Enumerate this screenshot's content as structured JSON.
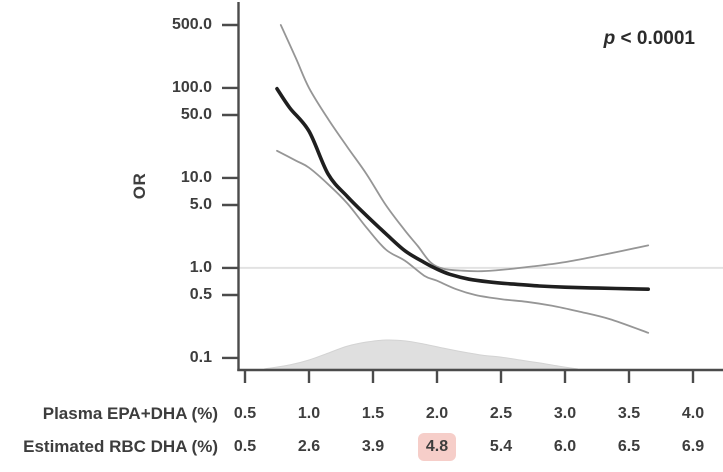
{
  "chart_data": {
    "type": "line",
    "title": "",
    "ylabel": "OR",
    "xlabel": "",
    "yscale": "log",
    "ylim": [
      0.07,
      600
    ],
    "xlim": [
      0.5,
      4.0
    ],
    "grid": false,
    "annotation": {
      "symbol": "p",
      "rest": " < 0.0001"
    },
    "reference_line_or": 1.0,
    "y_ticks": [
      "500.0",
      "100.0",
      "50.0",
      "10.0",
      "5.0",
      "1.0",
      "0.5",
      "0.1"
    ],
    "x_axis_rows": [
      {
        "label": "Plasma EPA+DHA (%)",
        "values": [
          "0.5",
          "1.0",
          "1.5",
          "2.0",
          "2.5",
          "3.0",
          "3.5",
          "4.0"
        ],
        "highlight_index": null
      },
      {
        "label": "Estimated RBC DHA (%)",
        "values": [
          "0.5",
          "2.6",
          "3.9",
          "4.8",
          "5.4",
          "6.0",
          "6.5",
          "6.9"
        ],
        "highlight_index": 3
      }
    ],
    "series": [
      {
        "name": "or-estimate",
        "x": [
          0.75,
          0.85,
          1.0,
          1.15,
          1.3,
          1.45,
          1.6,
          1.75,
          1.9,
          2.0,
          2.1,
          2.25,
          2.4,
          2.6,
          2.8,
          3.0,
          3.2,
          3.4,
          3.65
        ],
        "or": [
          98,
          60,
          33,
          11,
          6.2,
          3.8,
          2.4,
          1.55,
          1.15,
          0.97,
          0.85,
          0.75,
          0.7,
          0.66,
          0.63,
          0.61,
          0.6,
          0.59,
          0.58
        ]
      },
      {
        "name": "upper-95ci",
        "x": [
          0.78,
          0.9,
          1.0,
          1.15,
          1.3,
          1.45,
          1.6,
          1.75,
          1.85,
          1.95,
          2.05,
          2.2,
          2.35,
          2.5,
          2.75,
          3.0,
          3.3,
          3.65
        ],
        "or": [
          500,
          210,
          100,
          45,
          22,
          11,
          5.0,
          2.6,
          1.75,
          1.15,
          0.98,
          0.93,
          0.92,
          0.95,
          1.04,
          1.16,
          1.4,
          1.78
        ]
      },
      {
        "name": "lower-95ci",
        "x": [
          0.75,
          0.9,
          1.0,
          1.15,
          1.3,
          1.45,
          1.6,
          1.75,
          1.9,
          2.0,
          2.15,
          2.3,
          2.5,
          2.7,
          2.9,
          3.1,
          3.35,
          3.65
        ],
        "or": [
          20,
          15.5,
          13,
          8.5,
          5.2,
          2.8,
          1.6,
          1.2,
          0.82,
          0.72,
          0.58,
          0.5,
          0.45,
          0.42,
          0.38,
          0.33,
          0.27,
          0.19
        ]
      }
    ],
    "density": {
      "x": [
        0.65,
        0.85,
        1.0,
        1.15,
        1.3,
        1.45,
        1.6,
        1.75,
        1.9,
        2.05,
        2.2,
        2.35,
        2.5,
        2.65,
        2.8,
        2.95,
        3.1
      ],
      "rel": [
        0,
        0.14,
        0.31,
        0.55,
        0.79,
        0.93,
        1.0,
        0.97,
        0.86,
        0.72,
        0.59,
        0.48,
        0.41,
        0.31,
        0.21,
        0.1,
        0
      ]
    },
    "colors": {
      "estimate": "#1f1f1f",
      "ci": "#969696",
      "reference_line": "#e2e2e2",
      "density_fill": "#dfdfdf",
      "density_edge": "#d3d3d3",
      "axis": "#4b4b4b",
      "text": "#3d3d3d",
      "highlight": "#f6cec9"
    }
  }
}
